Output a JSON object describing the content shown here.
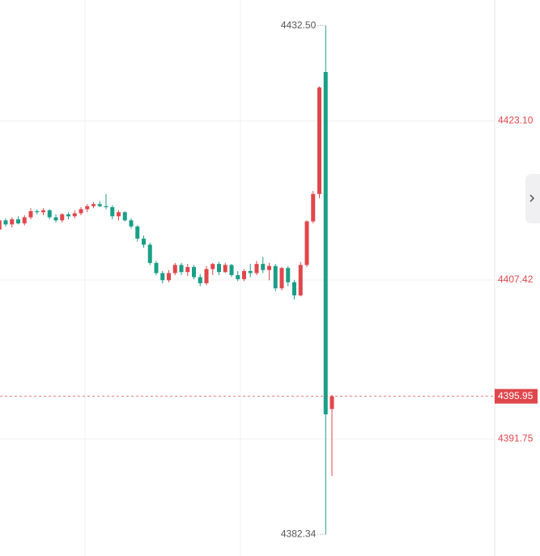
{
  "chart_data": {
    "type": "candlestick",
    "up_color": "#e0474c",
    "down_color": "#1a9f87",
    "grid": true,
    "ylim": [
      4380.2,
      4435.03
    ],
    "yticks": [
      {
        "value": 4423.1,
        "label": "4423.10"
      },
      {
        "value": 4407.42,
        "label": "4407.42"
      },
      {
        "value": 4391.75,
        "label": "4391.75"
      }
    ],
    "annotations": [
      {
        "value": 4432.5,
        "label": "4432.50"
      },
      {
        "value": 4382.34,
        "label": "4382.34"
      }
    ],
    "last_price": {
      "value": 4395.95,
      "label": "4395.95"
    },
    "open": [
      4412.4,
      4413.3,
      4412.9,
      4413.4,
      4413.0,
      4413.6,
      4414.2,
      4414.1,
      4414.3,
      4413.6,
      4413.3,
      4413.9,
      4413.7,
      4414.0,
      4414.4,
      4414.7,
      4414.9,
      4414.7,
      4414.6,
      4413.7,
      4414.1,
      4413.3,
      4412.7,
      4411.5,
      4410.9,
      4409.1,
      4408.1,
      4407.4,
      4408.1,
      4408.9,
      4408.2,
      4408.7,
      4407.7,
      4407.1,
      4408.5,
      4409.0,
      4408.2,
      4408.9,
      4407.9,
      4407.5,
      4408.3,
      4408.1,
      4409.0,
      4408.4,
      4408.8,
      4406.6,
      4408.6,
      4407.2,
      4405.9,
      4408.9,
      4413.2,
      4415.9,
      4427.93,
      4394.7
    ],
    "high": [
      4413.6,
      4413.5,
      4413.6,
      4413.7,
      4413.8,
      4414.5,
      4414.4,
      4414.5,
      4414.4,
      4413.9,
      4414.0,
      4414.1,
      4414.3,
      4414.6,
      4414.9,
      4415.1,
      4415.2,
      4415.9,
      4414.8,
      4414.3,
      4414.2,
      4413.5,
      4412.8,
      4411.8,
      4411.1,
      4409.3,
      4408.3,
      4408.4,
      4409.1,
      4409.1,
      4409.0,
      4408.9,
      4408.0,
      4408.8,
      4409.1,
      4409.2,
      4409.1,
      4409.0,
      4408.3,
      4408.5,
      4409.0,
      4409.3,
      4409.7,
      4409.1,
      4409.0,
      4408.7,
      4408.8,
      4407.4,
      4409.2,
      4413.3,
      4416.2,
      4426.5,
      4432.5,
      4396.1
    ],
    "low": [
      4412.1,
      4412.7,
      4412.6,
      4412.9,
      4412.8,
      4413.4,
      4413.9,
      4413.8,
      4413.4,
      4413.1,
      4413.1,
      4413.4,
      4413.5,
      4413.8,
      4414.1,
      4414.5,
      4414.6,
      4414.4,
      4413.4,
      4413.3,
      4413.2,
      4412.5,
      4411.2,
      4410.6,
      4408.9,
      4407.9,
      4407.1,
      4407.2,
      4407.9,
      4407.9,
      4407.8,
      4407.5,
      4406.8,
      4406.9,
      4407.9,
      4407.9,
      4408.1,
      4407.7,
      4407.3,
      4407.3,
      4407.7,
      4407.9,
      4408.1,
      4407.4,
      4406.3,
      4406.4,
      4406.8,
      4405.5,
      4405.8,
      4408.7,
      4413.0,
      4415.5,
      4382.34,
      4388.1
    ],
    "close": [
      4413.3,
      4412.9,
      4413.4,
      4413.0,
      4413.6,
      4414.2,
      4414.1,
      4414.3,
      4413.6,
      4413.3,
      4413.9,
      4413.7,
      4414.0,
      4414.4,
      4414.7,
      4414.9,
      4414.7,
      4414.6,
      4413.7,
      4414.1,
      4413.3,
      4412.7,
      4411.5,
      4410.9,
      4409.1,
      4408.1,
      4407.4,
      4408.1,
      4408.9,
      4408.2,
      4408.7,
      4407.7,
      4407.1,
      4408.5,
      4409.0,
      4408.2,
      4408.9,
      4407.9,
      4407.5,
      4408.3,
      4408.1,
      4409.0,
      4408.4,
      4408.8,
      4406.6,
      4408.6,
      4407.2,
      4405.9,
      4408.9,
      4413.2,
      4415.9,
      4426.4,
      4394.17,
      4395.95
    ]
  }
}
